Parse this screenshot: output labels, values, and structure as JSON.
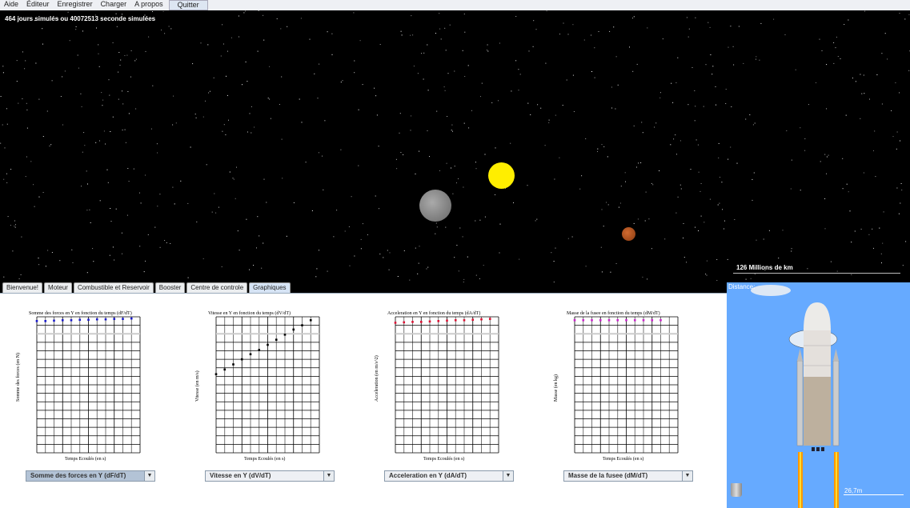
{
  "menu": [
    "Aide",
    "Éditeur",
    "Enregistrer",
    "Charger",
    "A propos",
    "Quitter"
  ],
  "space": {
    "sim_text": "464 jours simulés ou 40072513 seconde simulées",
    "scale_label": "126 Millions de km"
  },
  "tabs": [
    {
      "label": "Bienvenue!"
    },
    {
      "label": "Moteur"
    },
    {
      "label": "Combustible et Reservoir"
    },
    {
      "label": "Booster"
    },
    {
      "label": "Centre de controle"
    },
    {
      "label": "Graphiques",
      "active": true
    }
  ],
  "rocket": {
    "distance_label": "Distance:",
    "scale_label": "26,7m"
  },
  "colors": {
    "sun": "#ffee00",
    "moon": "#888888",
    "mars": "#b5531f",
    "sky": "#66aaff",
    "space": "#000000"
  },
  "chart_data": [
    {
      "type": "scatter",
      "title": "Somme des forces en Y en fonction du temps (dF/dT)",
      "xlabel": "Temps Ecoulés (en s)",
      "ylabel": "Somme des forces (en N)",
      "color": "#1a1acc",
      "grid": true,
      "ylim": [
        -8,
        8
      ],
      "values": [
        7.5,
        7.5,
        7.55,
        7.6,
        7.6,
        7.65,
        7.65,
        7.7,
        7.7,
        7.75,
        7.75,
        7.8
      ]
    },
    {
      "type": "scatter",
      "title": "Vitesse en Y en fonction du temps (dV/dT)",
      "xlabel": "Temps Ecoulés (en s)",
      "ylabel": "Vitesse (en m/s)",
      "color": "#000000",
      "grid": true,
      "ylim": [
        -16,
        16
      ],
      "values": [
        2.5,
        3.6,
        4.8,
        6,
        7.2,
        8.2,
        9.4,
        10.6,
        11.8,
        13,
        14,
        15.2
      ]
    },
    {
      "type": "scatter",
      "title": "Acceleration en Y en fonction du temps (dA/dT)",
      "xlabel": "Temps Ecoulés (en s)",
      "ylabel": "Acceleration (en m/s^2)",
      "color": "#dd1133",
      "grid": true,
      "ylim": [
        -8,
        8
      ],
      "values": [
        7.3,
        7.35,
        7.4,
        7.4,
        7.45,
        7.5,
        7.55,
        7.6,
        7.6,
        7.65,
        7.7,
        7.75
      ]
    },
    {
      "type": "scatter",
      "title": "Masse de la fusee en fonction du temps (dM/dT)",
      "xlabel": "Temps Ecoulés (en s)",
      "ylabel": "Masse (en kg)",
      "color": "#cc22cc",
      "grid": true,
      "ylim": [
        -8,
        8
      ],
      "values": [
        7.6,
        7.6,
        7.6,
        7.6,
        7.6,
        7.6,
        7.6,
        7.6,
        7.6,
        7.6,
        7.6
      ]
    }
  ],
  "selects": [
    "Somme des forces en Y (dF/dT)",
    "Vitesse en Y (dV/dT)",
    "Acceleration en Y (dA/dT)",
    "Masse de la fusee (dM/dT)"
  ]
}
